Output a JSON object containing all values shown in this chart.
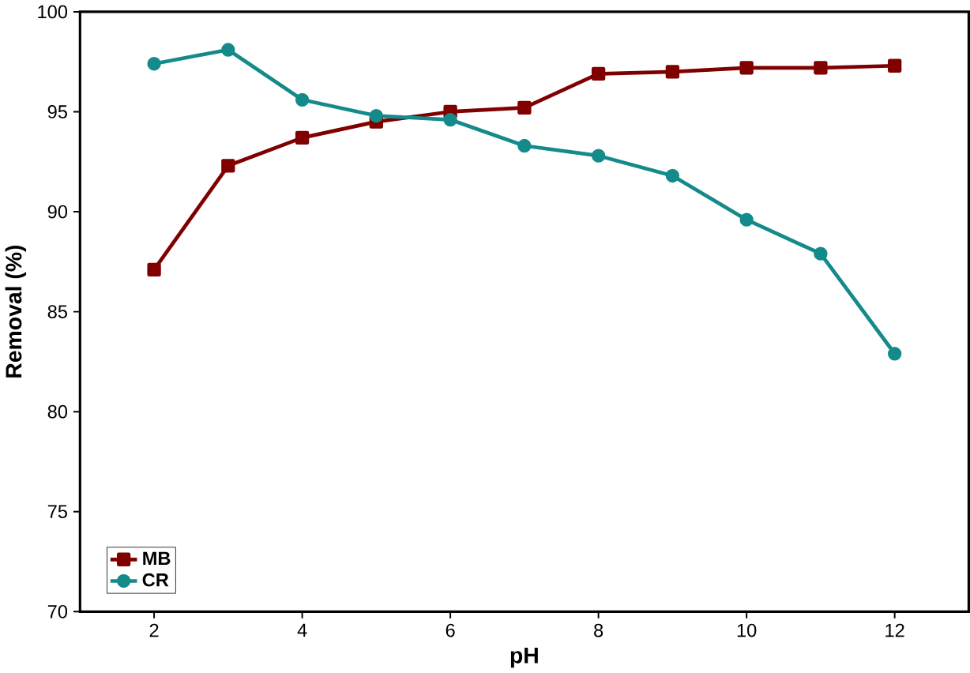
{
  "chart_data": {
    "type": "line",
    "xlabel": "pH",
    "ylabel": "Removal (%)",
    "x": [
      2,
      3,
      4,
      5,
      6,
      7,
      8,
      9,
      10,
      11,
      12
    ],
    "series": [
      {
        "name": "MB",
        "color": "#800000",
        "marker": "square",
        "values": [
          87.1,
          92.3,
          93.7,
          94.5,
          95.0,
          95.2,
          96.9,
          97.0,
          97.2,
          97.2,
          97.3
        ]
      },
      {
        "name": "CR",
        "color": "#148a8a",
        "marker": "circle",
        "values": [
          97.4,
          98.1,
          95.6,
          94.8,
          94.6,
          93.3,
          92.8,
          91.8,
          89.6,
          87.9,
          82.9
        ]
      }
    ],
    "xlim": [
      1,
      13
    ],
    "ylim": [
      70,
      100
    ],
    "xticks": [
      2,
      4,
      6,
      8,
      10,
      12
    ],
    "yticks": [
      70,
      75,
      80,
      85,
      90,
      95,
      100
    ],
    "grid": false,
    "legend": "bottom left",
    "line_style": "solid"
  }
}
